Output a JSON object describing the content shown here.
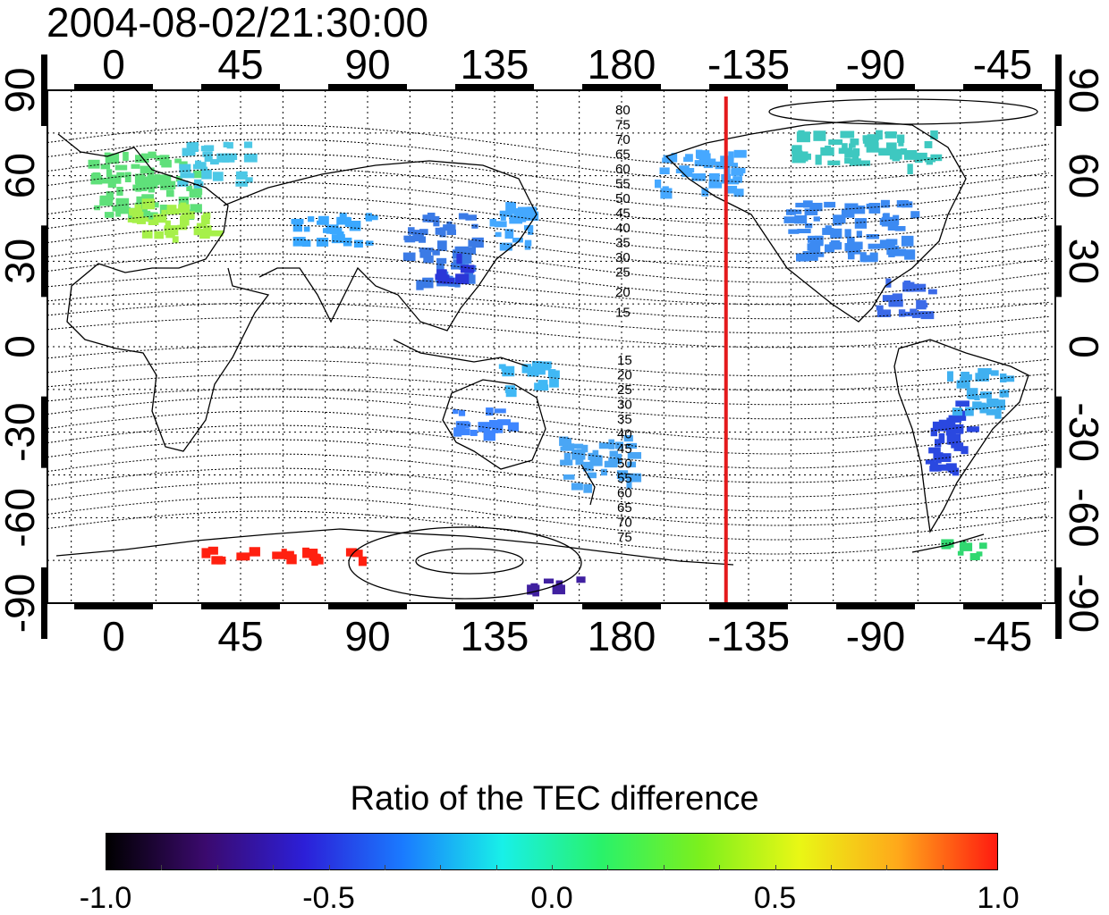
{
  "timestamp": "2004-08-02/21:30:00",
  "map": {
    "lon_tick_labels": [
      "0",
      "45",
      "90",
      "135",
      "180",
      "-135",
      "-90",
      "-45"
    ],
    "lat_tick_labels_left": [
      "90",
      "60",
      "30",
      "0",
      "-30",
      "-60",
      "-90"
    ],
    "lat_tick_labels_right": [
      "90",
      "60",
      "30",
      "0",
      "-30",
      "-60",
      "-90"
    ],
    "contour_labels_north": [
      "80",
      "75",
      "70",
      "65",
      "60",
      "55",
      "50",
      "45",
      "40",
      "35",
      "30",
      "25",
      "20",
      "15"
    ],
    "contour_labels_south": [
      "15",
      "20",
      "25",
      "30",
      "35",
      "40",
      "45",
      "50",
      "55",
      "60",
      "65",
      "70",
      "75"
    ],
    "terminator_longitude": -143,
    "terminator_color": "#e41a1c"
  },
  "colorbar": {
    "title": "Ratio of the TEC difference",
    "tick_labels": [
      "-1.0",
      "-0.5",
      "0.0",
      "0.5",
      "1.0"
    ],
    "range": [
      -1.0,
      1.0
    ],
    "colors": [
      "#000000",
      "#3b0a6e",
      "#2c1fd8",
      "#1a7bff",
      "#18f0e8",
      "#29f26a",
      "#7cf01d",
      "#e9f715",
      "#ffa81a",
      "#ff1a10"
    ]
  },
  "data_regions": [
    {
      "lon": 10,
      "lat": 58,
      "w": 40,
      "h": 22,
      "color": "#5fe07a"
    },
    {
      "lon": 20,
      "lat": 45,
      "w": 30,
      "h": 14,
      "color": "#a6f04a"
    },
    {
      "lon": 35,
      "lat": 65,
      "w": 25,
      "h": 14,
      "color": "#4dc8e6"
    },
    {
      "lon": 75,
      "lat": 42,
      "w": 30,
      "h": 10,
      "color": "#3aa8ff"
    },
    {
      "lon": 115,
      "lat": 35,
      "w": 25,
      "h": 25,
      "color": "#3b7be6"
    },
    {
      "lon": 118,
      "lat": 28,
      "w": 10,
      "h": 10,
      "color": "#2a36d8"
    },
    {
      "lon": 140,
      "lat": 42,
      "w": 14,
      "h": 18,
      "color": "#44a8ff"
    },
    {
      "lon": 145,
      "lat": -10,
      "w": 20,
      "h": 10,
      "color": "#40b8f5"
    },
    {
      "lon": 130,
      "lat": -25,
      "w": 20,
      "h": 10,
      "color": "#3e86ff"
    },
    {
      "lon": 170,
      "lat": -40,
      "w": 25,
      "h": 18,
      "color": "#4aa6f5"
    },
    {
      "lon": -155,
      "lat": 62,
      "w": 30,
      "h": 15,
      "color": "#46a8ff"
    },
    {
      "lon": -100,
      "lat": 42,
      "w": 45,
      "h": 20,
      "color": "#3c8af2"
    },
    {
      "lon": -95,
      "lat": 70,
      "w": 50,
      "h": 12,
      "color": "#3ec8c0"
    },
    {
      "lon": -80,
      "lat": 18,
      "w": 20,
      "h": 12,
      "color": "#3b6ae8"
    },
    {
      "lon": -65,
      "lat": -30,
      "w": 15,
      "h": 25,
      "color": "#2a48e0"
    },
    {
      "lon": -55,
      "lat": -15,
      "w": 20,
      "h": 15,
      "color": "#40b0f0"
    },
    {
      "lon": 60,
      "lat": -72,
      "w": 60,
      "h": 4,
      "color": "#ff2010"
    },
    {
      "lon": 155,
      "lat": -82,
      "w": 20,
      "h": 5,
      "color": "#4020a0"
    },
    {
      "lon": -60,
      "lat": -70,
      "w": 20,
      "h": 5,
      "color": "#30d870"
    }
  ]
}
